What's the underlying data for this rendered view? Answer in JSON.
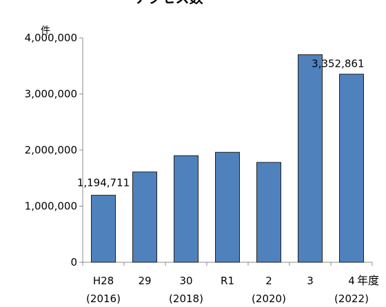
{
  "chart_data": {
    "type": "bar",
    "title": "アクセス数",
    "ylabel": "件",
    "xlabel": "年度",
    "ylim": [
      0,
      4000000
    ],
    "yticks": [
      0,
      1000000,
      2000000,
      3000000,
      4000000
    ],
    "ytick_labels": [
      "0",
      "1,000,000",
      "2,000,000",
      "3,000,000",
      "4,000,000"
    ],
    "categories": [
      {
        "top": "H28",
        "bottom": "(2016)"
      },
      {
        "top": "29",
        "bottom": ""
      },
      {
        "top": "30",
        "bottom": "(2018)"
      },
      {
        "top": "R1",
        "bottom": ""
      },
      {
        "top": "2",
        "bottom": "(2020)"
      },
      {
        "top": "3",
        "bottom": ""
      },
      {
        "top": "4",
        "bottom": "(2022)"
      }
    ],
    "values": [
      1194711,
      1610000,
      1900000,
      1960000,
      1780000,
      3700000,
      3352861
    ],
    "data_labels": [
      "1,194,711",
      "",
      "",
      "",
      "",
      "",
      "3,352,861"
    ],
    "bar_color": "#4f81bd",
    "bar_edge_color": "#1f1f1f",
    "grid": false
  }
}
